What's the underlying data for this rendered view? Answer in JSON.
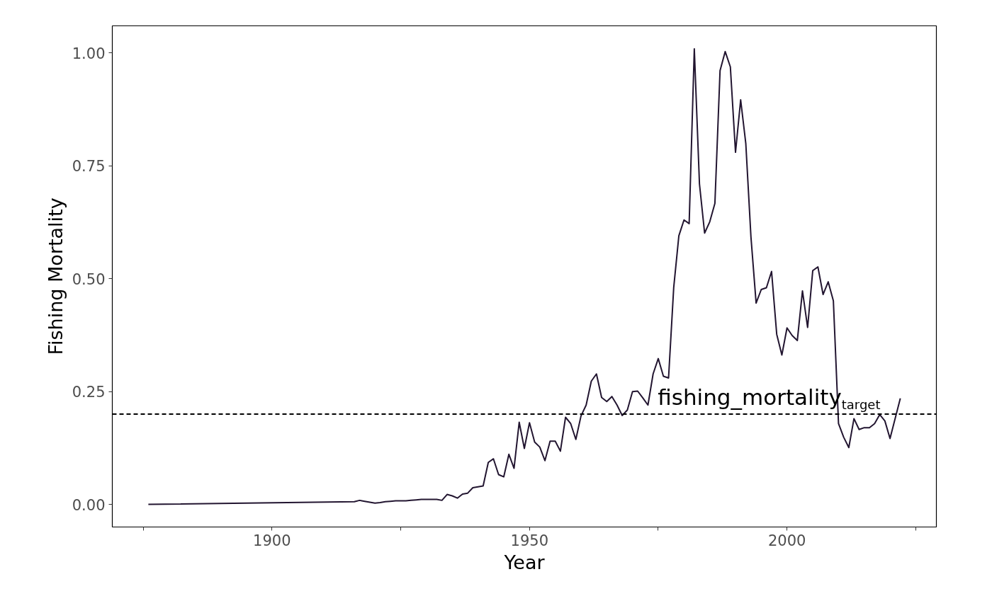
{
  "chart_data": {
    "type": "line",
    "xlabel": "Year",
    "ylabel": "Fishing Mortality",
    "x": [
      1876,
      1916,
      1917,
      1918,
      1919,
      1920,
      1921,
      1922,
      1923,
      1924,
      1925,
      1926,
      1927,
      1928,
      1929,
      1930,
      1931,
      1932,
      1933,
      1934,
      1935,
      1936,
      1937,
      1938,
      1939,
      1940,
      1941,
      1942,
      1943,
      1944,
      1945,
      1946,
      1947,
      1948,
      1949,
      1950,
      1951,
      1952,
      1953,
      1954,
      1955,
      1956,
      1957,
      1958,
      1959,
      1960,
      1961,
      1962,
      1963,
      1964,
      1965,
      1966,
      1967,
      1968,
      1969,
      1970,
      1971,
      1972,
      1973,
      1974,
      1975,
      1976,
      1977,
      1978,
      1979,
      1980,
      1981,
      1982,
      1983,
      1984,
      1985,
      1986,
      1987,
      1988,
      1989,
      1990,
      1991,
      1992,
      1993,
      1994,
      1995,
      1996,
      1997,
      1998,
      1999,
      2000,
      2001,
      2002,
      2003,
      2004,
      2005,
      2006,
      2007,
      2008,
      2009,
      2010,
      2011,
      2012,
      2013,
      2014,
      2015,
      2016,
      2017,
      2018,
      2019,
      2020,
      2022
    ],
    "series": [
      {
        "color": "#221530",
        "values": [
          0.0,
          0.006,
          0.009,
          0.007,
          0.005,
          0.003,
          0.004,
          0.006,
          0.007,
          0.008,
          0.008,
          0.008,
          0.009,
          0.01,
          0.011,
          0.011,
          0.011,
          0.011,
          0.009,
          0.022,
          0.019,
          0.014,
          0.023,
          0.025,
          0.037,
          0.039,
          0.041,
          0.093,
          0.101,
          0.066,
          0.061,
          0.111,
          0.08,
          0.182,
          0.124,
          0.181,
          0.138,
          0.127,
          0.097,
          0.14,
          0.14,
          0.118,
          0.193,
          0.179,
          0.144,
          0.196,
          0.22,
          0.273,
          0.289,
          0.237,
          0.228,
          0.239,
          0.22,
          0.197,
          0.209,
          0.25,
          0.251,
          0.236,
          0.22,
          0.289,
          0.323,
          0.284,
          0.28,
          0.48,
          0.595,
          0.63,
          0.622,
          1.009,
          0.71,
          0.601,
          0.626,
          0.667,
          0.961,
          1.003,
          0.969,
          0.78,
          0.896,
          0.799,
          0.592,
          0.446,
          0.476,
          0.48,
          0.516,
          0.377,
          0.331,
          0.391,
          0.374,
          0.363,
          0.473,
          0.392,
          0.518,
          0.526,
          0.465,
          0.493,
          0.451,
          0.179,
          0.149,
          0.126,
          0.19,
          0.166,
          0.17,
          0.17,
          0.179,
          0.199,
          0.185,
          0.146,
          0.235
        ]
      }
    ],
    "xlim": [
      1869,
      2029
    ],
    "ylim": [
      -0.05,
      1.06
    ],
    "xticks": [
      {
        "value": 1875,
        "label": null
      },
      1900,
      {
        "value": 1925,
        "label": null
      },
      1950,
      {
        "value": 1975,
        "label": null
      },
      2000,
      {
        "value": 2025,
        "label": null
      }
    ],
    "yticks": [
      {
        "value": 0,
        "label": "0.00"
      },
      {
        "value": 0.25,
        "label": "0.25"
      },
      {
        "value": 0.5,
        "label": "0.50"
      },
      {
        "value": 0.75,
        "label": "0.75"
      },
      {
        "value": 1,
        "label": "1.00"
      }
    ],
    "grid": false,
    "line_style": "solid",
    "marker": "none",
    "ref_lines": [
      {
        "axis": "y",
        "value": 0.2,
        "label": "fishing_mortality$_{target}$",
        "color": "#000000",
        "line_style": "dashed"
      }
    ]
  }
}
